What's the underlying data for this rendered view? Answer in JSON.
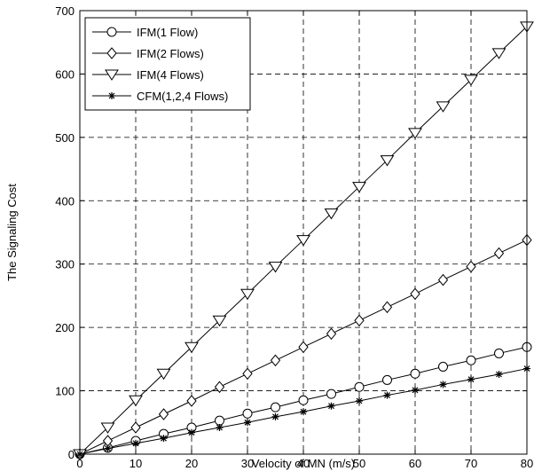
{
  "chart_data": {
    "type": "line",
    "title": "",
    "xlabel": "Velocity of MN (m/s)",
    "ylabel": "The Signaling Cost",
    "xlim": [
      0,
      80
    ],
    "ylim": [
      0,
      700
    ],
    "xticks": [
      0,
      10,
      20,
      30,
      40,
      50,
      60,
      70,
      80
    ],
    "yticks": [
      0,
      100,
      200,
      300,
      400,
      500,
      600,
      700
    ],
    "xtick_labels": [
      "0",
      "10",
      "20",
      "30",
      "40",
      "50",
      "60",
      "70",
      "80"
    ],
    "ytick_labels": [
      "0",
      "100",
      "200",
      "300",
      "400",
      "500",
      "600",
      "700"
    ],
    "grid": true,
    "grid_style": "dashed",
    "legend_position": "top-left",
    "x": [
      0,
      5,
      10,
      15,
      20,
      25,
      30,
      35,
      40,
      45,
      50,
      55,
      60,
      65,
      70,
      75,
      80
    ],
    "series": [
      {
        "name": "IFM(1 Flow)",
        "marker": "circle",
        "color": "#000000",
        "values": [
          0,
          10,
          21,
          32,
          42,
          53,
          64,
          74,
          85,
          95,
          106,
          117,
          127,
          138,
          148,
          159,
          169
        ]
      },
      {
        "name": "IFM(2 Flows)",
        "marker": "diamond",
        "color": "#000000",
        "values": [
          0,
          21,
          42,
          63,
          84,
          106,
          127,
          148,
          169,
          190,
          211,
          232,
          253,
          275,
          296,
          317,
          338
        ]
      },
      {
        "name": "IFM(4 Flows)",
        "marker": "triangle-down",
        "color": "#000000",
        "values": [
          0,
          42,
          85,
          127,
          169,
          211,
          253,
          296,
          338,
          380,
          422,
          464,
          507,
          549,
          591,
          633,
          675
        ]
      },
      {
        "name": "CFM(1,2,4 Flows)",
        "marker": "asterisk",
        "color": "#000000",
        "values": [
          0,
          9,
          17,
          25,
          34,
          42,
          50,
          59,
          67,
          76,
          84,
          93,
          101,
          110,
          118,
          126,
          135
        ]
      }
    ]
  }
}
